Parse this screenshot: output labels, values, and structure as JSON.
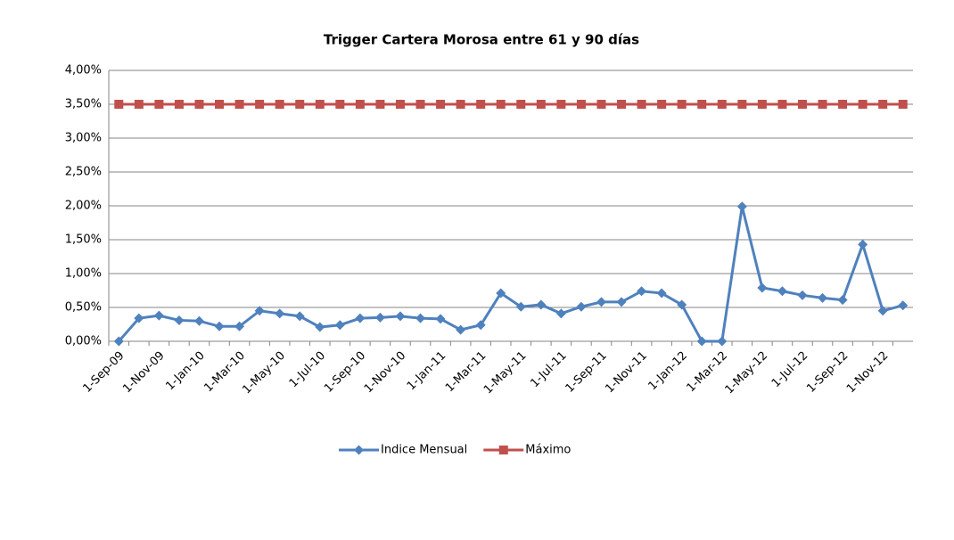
{
  "chart_data": {
    "type": "line",
    "title": "Trigger Cartera Morosa entre 61 y 90 días",
    "categories": [
      "1-Sep-09",
      null,
      "1-Nov-09",
      null,
      "1-Jan-10",
      null,
      "1-Mar-10",
      null,
      "1-May-10",
      null,
      "1-Jul-10",
      null,
      "1-Sep-10",
      null,
      "1-Nov-10",
      null,
      "1-Jan-11",
      null,
      "1-Mar-11",
      null,
      "1-May-11",
      null,
      "1-Jul-11",
      null,
      "1-Sep-11",
      null,
      "1-Nov-11",
      null,
      "1-Jan-12",
      null,
      "1-Mar-12",
      null,
      "1-May-12",
      null,
      "1-Jul-12",
      null,
      "1-Sep-12",
      null,
      "1-Nov-12",
      null
    ],
    "series": [
      {
        "name": "Indice Mensual",
        "color": "#4f81bd",
        "marker": "diamond",
        "values": [
          0,
          0.34,
          0.38,
          0.31,
          0.3,
          0.22,
          0.22,
          0.45,
          0.41,
          0.37,
          0.21,
          0.24,
          0.34,
          0.35,
          0.37,
          0.34,
          0.33,
          0.17,
          0.24,
          0.71,
          0.51,
          0.54,
          0.41,
          0.51,
          0.58,
          0.58,
          0.74,
          0.71,
          0.54,
          0,
          0,
          1.99,
          0.79,
          0.74,
          0.68,
          0.64,
          0.61,
          1.43,
          0.45,
          0.53
        ]
      },
      {
        "name": "Máximo",
        "color": "#c0504d",
        "marker": "square",
        "values": [
          3.5,
          3.5,
          3.5,
          3.5,
          3.5,
          3.5,
          3.5,
          3.5,
          3.5,
          3.5,
          3.5,
          3.5,
          3.5,
          3.5,
          3.5,
          3.5,
          3.5,
          3.5,
          3.5,
          3.5,
          3.5,
          3.5,
          3.5,
          3.5,
          3.5,
          3.5,
          3.5,
          3.5,
          3.5,
          3.5,
          3.5,
          3.5,
          3.5,
          3.5,
          3.5,
          3.5,
          3.5,
          3.5,
          3.5,
          3.5
        ]
      }
    ],
    "ylim": [
      0,
      4
    ],
    "yticks": [
      {
        "value": 0,
        "label": "0,00%"
      },
      {
        "value": 0.5,
        "label": "0,50%"
      },
      {
        "value": 1,
        "label": "1,00%"
      },
      {
        "value": 1.5,
        "label": "1,50%"
      },
      {
        "value": 2,
        "label": "2,00%"
      },
      {
        "value": 2.5,
        "label": "2,50%"
      },
      {
        "value": 3,
        "label": "3,00%"
      },
      {
        "value": 3.5,
        "label": "3,50%"
      },
      {
        "value": 4,
        "label": "4,00%"
      }
    ],
    "grid": true,
    "legend": "bottom"
  }
}
